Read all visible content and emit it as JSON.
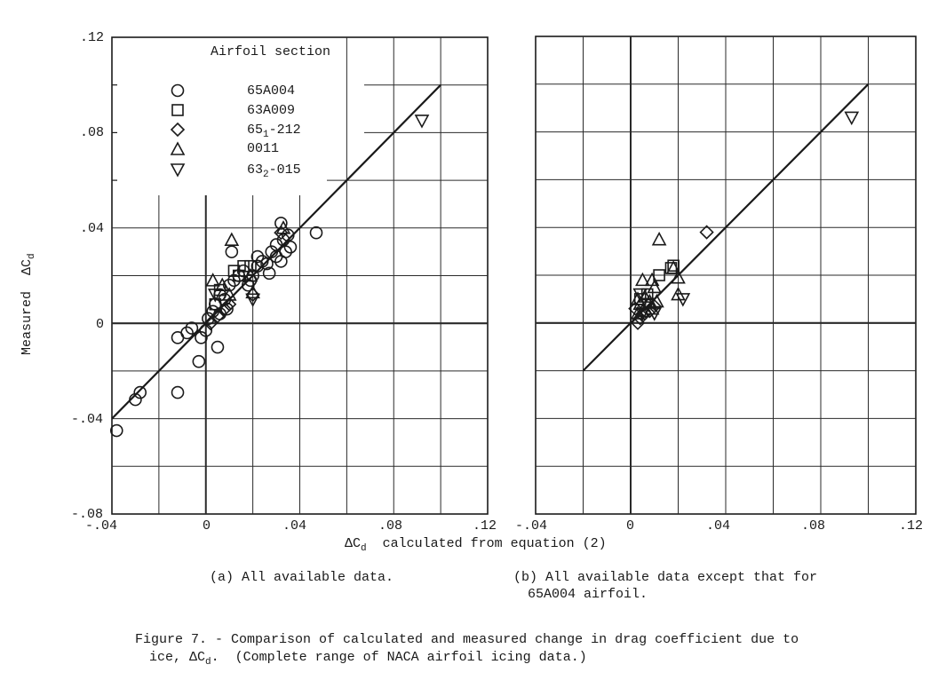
{
  "figure": {
    "caption_line1": "Figure 7. - Comparison of calculated and measured change in drag coefficient due to",
    "caption_line2_prefix": "ice, ΔC",
    "caption_line2_sub": "d",
    "caption_line2_suffix": ".  (Complete range of NACA airfoil icing data.)",
    "subcaption_a": "(a) All available data.",
    "subcaption_b_line1": "(b) All available data except that for",
    "subcaption_b_line2": "65A004 airfoil.",
    "xlabel_prefix": "ΔC",
    "xlabel_sub": "d",
    "xlabel_suffix": "  calculated from equation (2)",
    "ylabel_prefix": "Measured  ΔC",
    "ylabel_sub": "d",
    "legend_title": "Airfoil section"
  },
  "chart_data": [
    {
      "type": "scatter",
      "panel": "a",
      "title": "(a) All available data.",
      "xlabel": "ΔCd calculated from equation (2)",
      "ylabel": "Measured ΔCd",
      "xlim": [
        -0.04,
        0.12
      ],
      "ylim": [
        -0.08,
        0.12
      ],
      "x_ticks": [
        "-.04",
        "0",
        ".04",
        ".08",
        ".12"
      ],
      "y_ticks": [
        "-.08",
        "-.04",
        "0",
        ".04",
        ".08",
        ".12"
      ],
      "grid": true,
      "grid_step": 0.02,
      "legend_position": "upper-left",
      "reference_line": {
        "label": "line of agreement",
        "from": [
          -0.04,
          -0.04
        ],
        "to": [
          0.1,
          0.1
        ]
      },
      "series": [
        {
          "name": "65A004",
          "marker": "circle",
          "points": [
            [
              -0.038,
              -0.045
            ],
            [
              -0.03,
              -0.032
            ],
            [
              -0.028,
              -0.029
            ],
            [
              -0.012,
              -0.006
            ],
            [
              -0.012,
              -0.029
            ],
            [
              -0.008,
              -0.004
            ],
            [
              -0.006,
              -0.002
            ],
            [
              -0.003,
              -0.016
            ],
            [
              -0.002,
              -0.006
            ],
            [
              0.0,
              -0.003
            ],
            [
              0.005,
              -0.01
            ],
            [
              0.001,
              0.002
            ],
            [
              0.003,
              0.005
            ],
            [
              0.004,
              0.008
            ],
            [
              0.006,
              0.012
            ],
            [
              0.008,
              0.01
            ],
            [
              0.01,
              0.016
            ],
            [
              0.011,
              0.03
            ],
            [
              0.012,
              0.018
            ],
            [
              0.014,
              0.02
            ],
            [
              0.016,
              0.022
            ],
            [
              0.018,
              0.016
            ],
            [
              0.019,
              0.018
            ],
            [
              0.02,
              0.02
            ],
            [
              0.022,
              0.024
            ],
            [
              0.022,
              0.028
            ],
            [
              0.024,
              0.026
            ],
            [
              0.026,
              0.025
            ],
            [
              0.027,
              0.021
            ],
            [
              0.028,
              0.03
            ],
            [
              0.03,
              0.033
            ],
            [
              0.03,
              0.028
            ],
            [
              0.032,
              0.042
            ],
            [
              0.032,
              0.026
            ],
            [
              0.033,
              0.035
            ],
            [
              0.034,
              0.03
            ],
            [
              0.035,
              0.037
            ],
            [
              0.036,
              0.032
            ],
            [
              0.047,
              0.038
            ],
            [
              0.006,
              0.004
            ],
            [
              0.009,
              0.006
            ]
          ]
        },
        {
          "name": "63A009",
          "marker": "square",
          "points": [
            [
              0.004,
              0.008
            ],
            [
              0.012,
              0.022
            ],
            [
              0.016,
              0.024
            ],
            [
              0.019,
              0.024
            ],
            [
              0.014,
              0.02
            ],
            [
              0.006,
              0.014
            ]
          ]
        },
        {
          "name": "65_1-212",
          "marker": "diamond",
          "points": [
            [
              0.002,
              0.0
            ],
            [
              0.005,
              0.003
            ],
            [
              0.02,
              0.012
            ],
            [
              0.008,
              0.006
            ],
            [
              0.01,
              0.008
            ],
            [
              0.032,
              0.038
            ]
          ]
        },
        {
          "name": "0011",
          "marker": "triangle-up",
          "points": [
            [
              0.011,
              0.035
            ],
            [
              0.003,
              0.018
            ],
            [
              0.007,
              0.016
            ],
            [
              0.019,
              0.02
            ],
            [
              0.02,
              0.013
            ],
            [
              0.033,
              0.04
            ],
            [
              0.01,
              0.012
            ]
          ]
        },
        {
          "name": "63_2-015",
          "marker": "triangle-down",
          "points": [
            [
              0.092,
              0.085
            ],
            [
              0.02,
              0.01
            ],
            [
              0.004,
              0.012
            ]
          ]
        }
      ]
    },
    {
      "type": "scatter",
      "panel": "b",
      "title": "(b) All available data except that for 65A004 airfoil.",
      "xlabel": "ΔCd calculated from equation (2)",
      "ylabel": "Measured ΔCd",
      "xlim": [
        -0.04,
        0.12
      ],
      "ylim": [
        -0.08,
        0.12
      ],
      "x_ticks": [
        "-.04",
        "0",
        ".04",
        ".08",
        ".12"
      ],
      "grid": true,
      "grid_step": 0.02,
      "reference_line": {
        "label": "line of agreement",
        "from": [
          -0.02,
          -0.02
        ],
        "to": [
          0.1,
          0.1
        ]
      },
      "series": [
        {
          "name": "63A009",
          "marker": "square",
          "points": [
            [
              0.012,
              0.02
            ],
            [
              0.017,
              0.023
            ],
            [
              0.018,
              0.024
            ],
            [
              0.004,
              0.01
            ],
            [
              0.007,
              0.012
            ]
          ]
        },
        {
          "name": "65_1-212",
          "marker": "diamond",
          "points": [
            [
              0.032,
              0.038
            ],
            [
              0.003,
              0.0
            ],
            [
              0.004,
              0.002
            ],
            [
              0.006,
              0.004
            ],
            [
              0.008,
              0.005
            ],
            [
              0.002,
              0.006
            ],
            [
              0.01,
              0.007
            ]
          ]
        },
        {
          "name": "0011",
          "marker": "triangle-up",
          "points": [
            [
              0.012,
              0.035
            ],
            [
              0.005,
              0.018
            ],
            [
              0.009,
              0.018
            ],
            [
              0.01,
              0.015
            ],
            [
              0.018,
              0.023
            ],
            [
              0.02,
              0.019
            ],
            [
              0.02,
              0.012
            ],
            [
              0.003,
              0.01
            ],
            [
              0.006,
              0.011
            ],
            [
              0.004,
              0.008
            ],
            [
              0.008,
              0.009
            ],
            [
              0.011,
              0.009
            ],
            [
              0.005,
              0.005
            ],
            [
              0.009,
              0.006
            ],
            [
              0.003,
              0.004
            ]
          ]
        },
        {
          "name": "63_2-015",
          "marker": "triangle-down",
          "points": [
            [
              0.093,
              0.086
            ],
            [
              0.022,
              0.01
            ],
            [
              0.004,
              0.012
            ],
            [
              0.007,
              0.008
            ],
            [
              0.005,
              0.004
            ],
            [
              0.01,
              0.004
            ]
          ]
        }
      ]
    }
  ],
  "legend": [
    {
      "marker": "circle",
      "label": "65A004",
      "label_main": "65A004",
      "label_sub": "",
      "label_tail": ""
    },
    {
      "marker": "square",
      "label": "63A009",
      "label_main": "63A009",
      "label_sub": "",
      "label_tail": ""
    },
    {
      "marker": "diamond",
      "label": "65_1-212",
      "label_main": "65",
      "label_sub": "1",
      "label_tail": "-212"
    },
    {
      "marker": "triangle-up",
      "label": "0011",
      "label_main": "0011",
      "label_sub": "",
      "label_tail": ""
    },
    {
      "marker": "triangle-down",
      "label": "63_2-015",
      "label_main": "63",
      "label_sub": "2",
      "label_tail": "-015"
    }
  ],
  "colors": {
    "ink": "#1a1a1a",
    "grid": "#2a2a2a",
    "background": "#ffffff"
  }
}
